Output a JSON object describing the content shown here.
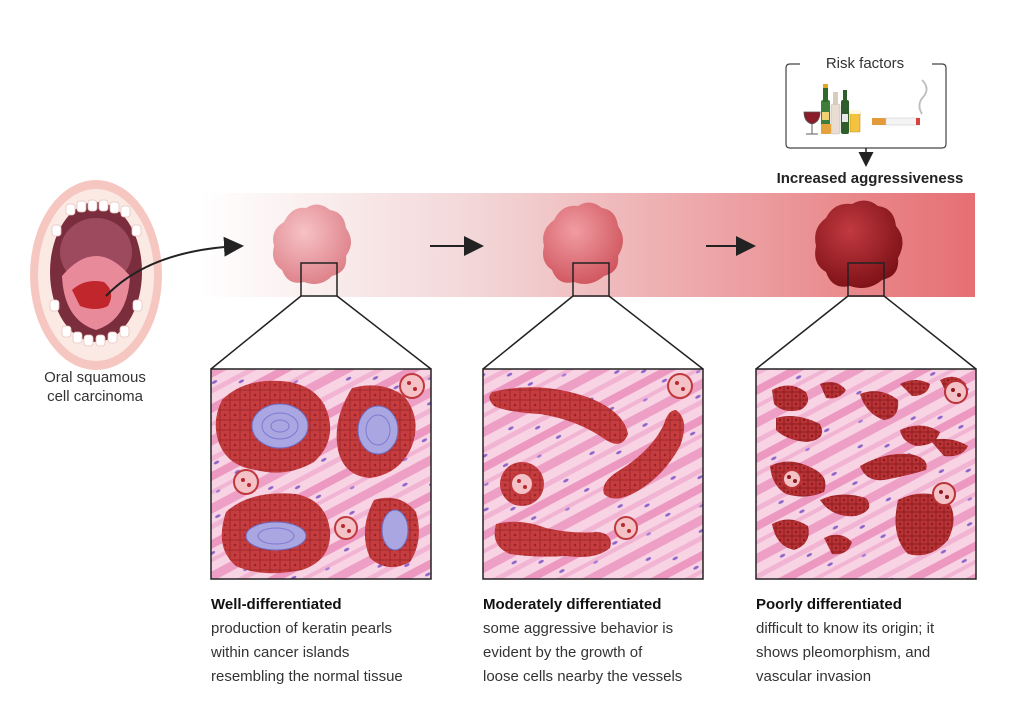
{
  "mouth_label_line1": "Oral squamous",
  "mouth_label_line2": "cell carcinoma",
  "risk_factors_title": "Risk factors",
  "aggressiveness_label": "Increased aggressiveness",
  "stages": [
    {
      "title": "Well-differentiated",
      "lines": [
        "production of keratin pearls",
        "within cancer islands",
        "resembling the normal tissue"
      ]
    },
    {
      "title": "Moderately differentiated",
      "lines": [
        "some aggressive behavior is",
        "evident by the growth of",
        "loose cells nearby the vessels"
      ]
    },
    {
      "title": "Poorly differentiated",
      "lines": [
        "difficult to know its origin; it",
        "shows pleomorphism, and",
        "vascular invasion"
      ]
    }
  ],
  "colors": {
    "gradient_start": "#ffffff",
    "gradient_end": "#e66f73",
    "tumor_light": "#ec9aa0",
    "tumor_medium": "#d9676e",
    "tumor_dark": "#9a1c22",
    "tissue_pink": "#f4c6dd",
    "cancer_red": "#c0393c",
    "keratin_pearl": "#a9a6e2"
  }
}
